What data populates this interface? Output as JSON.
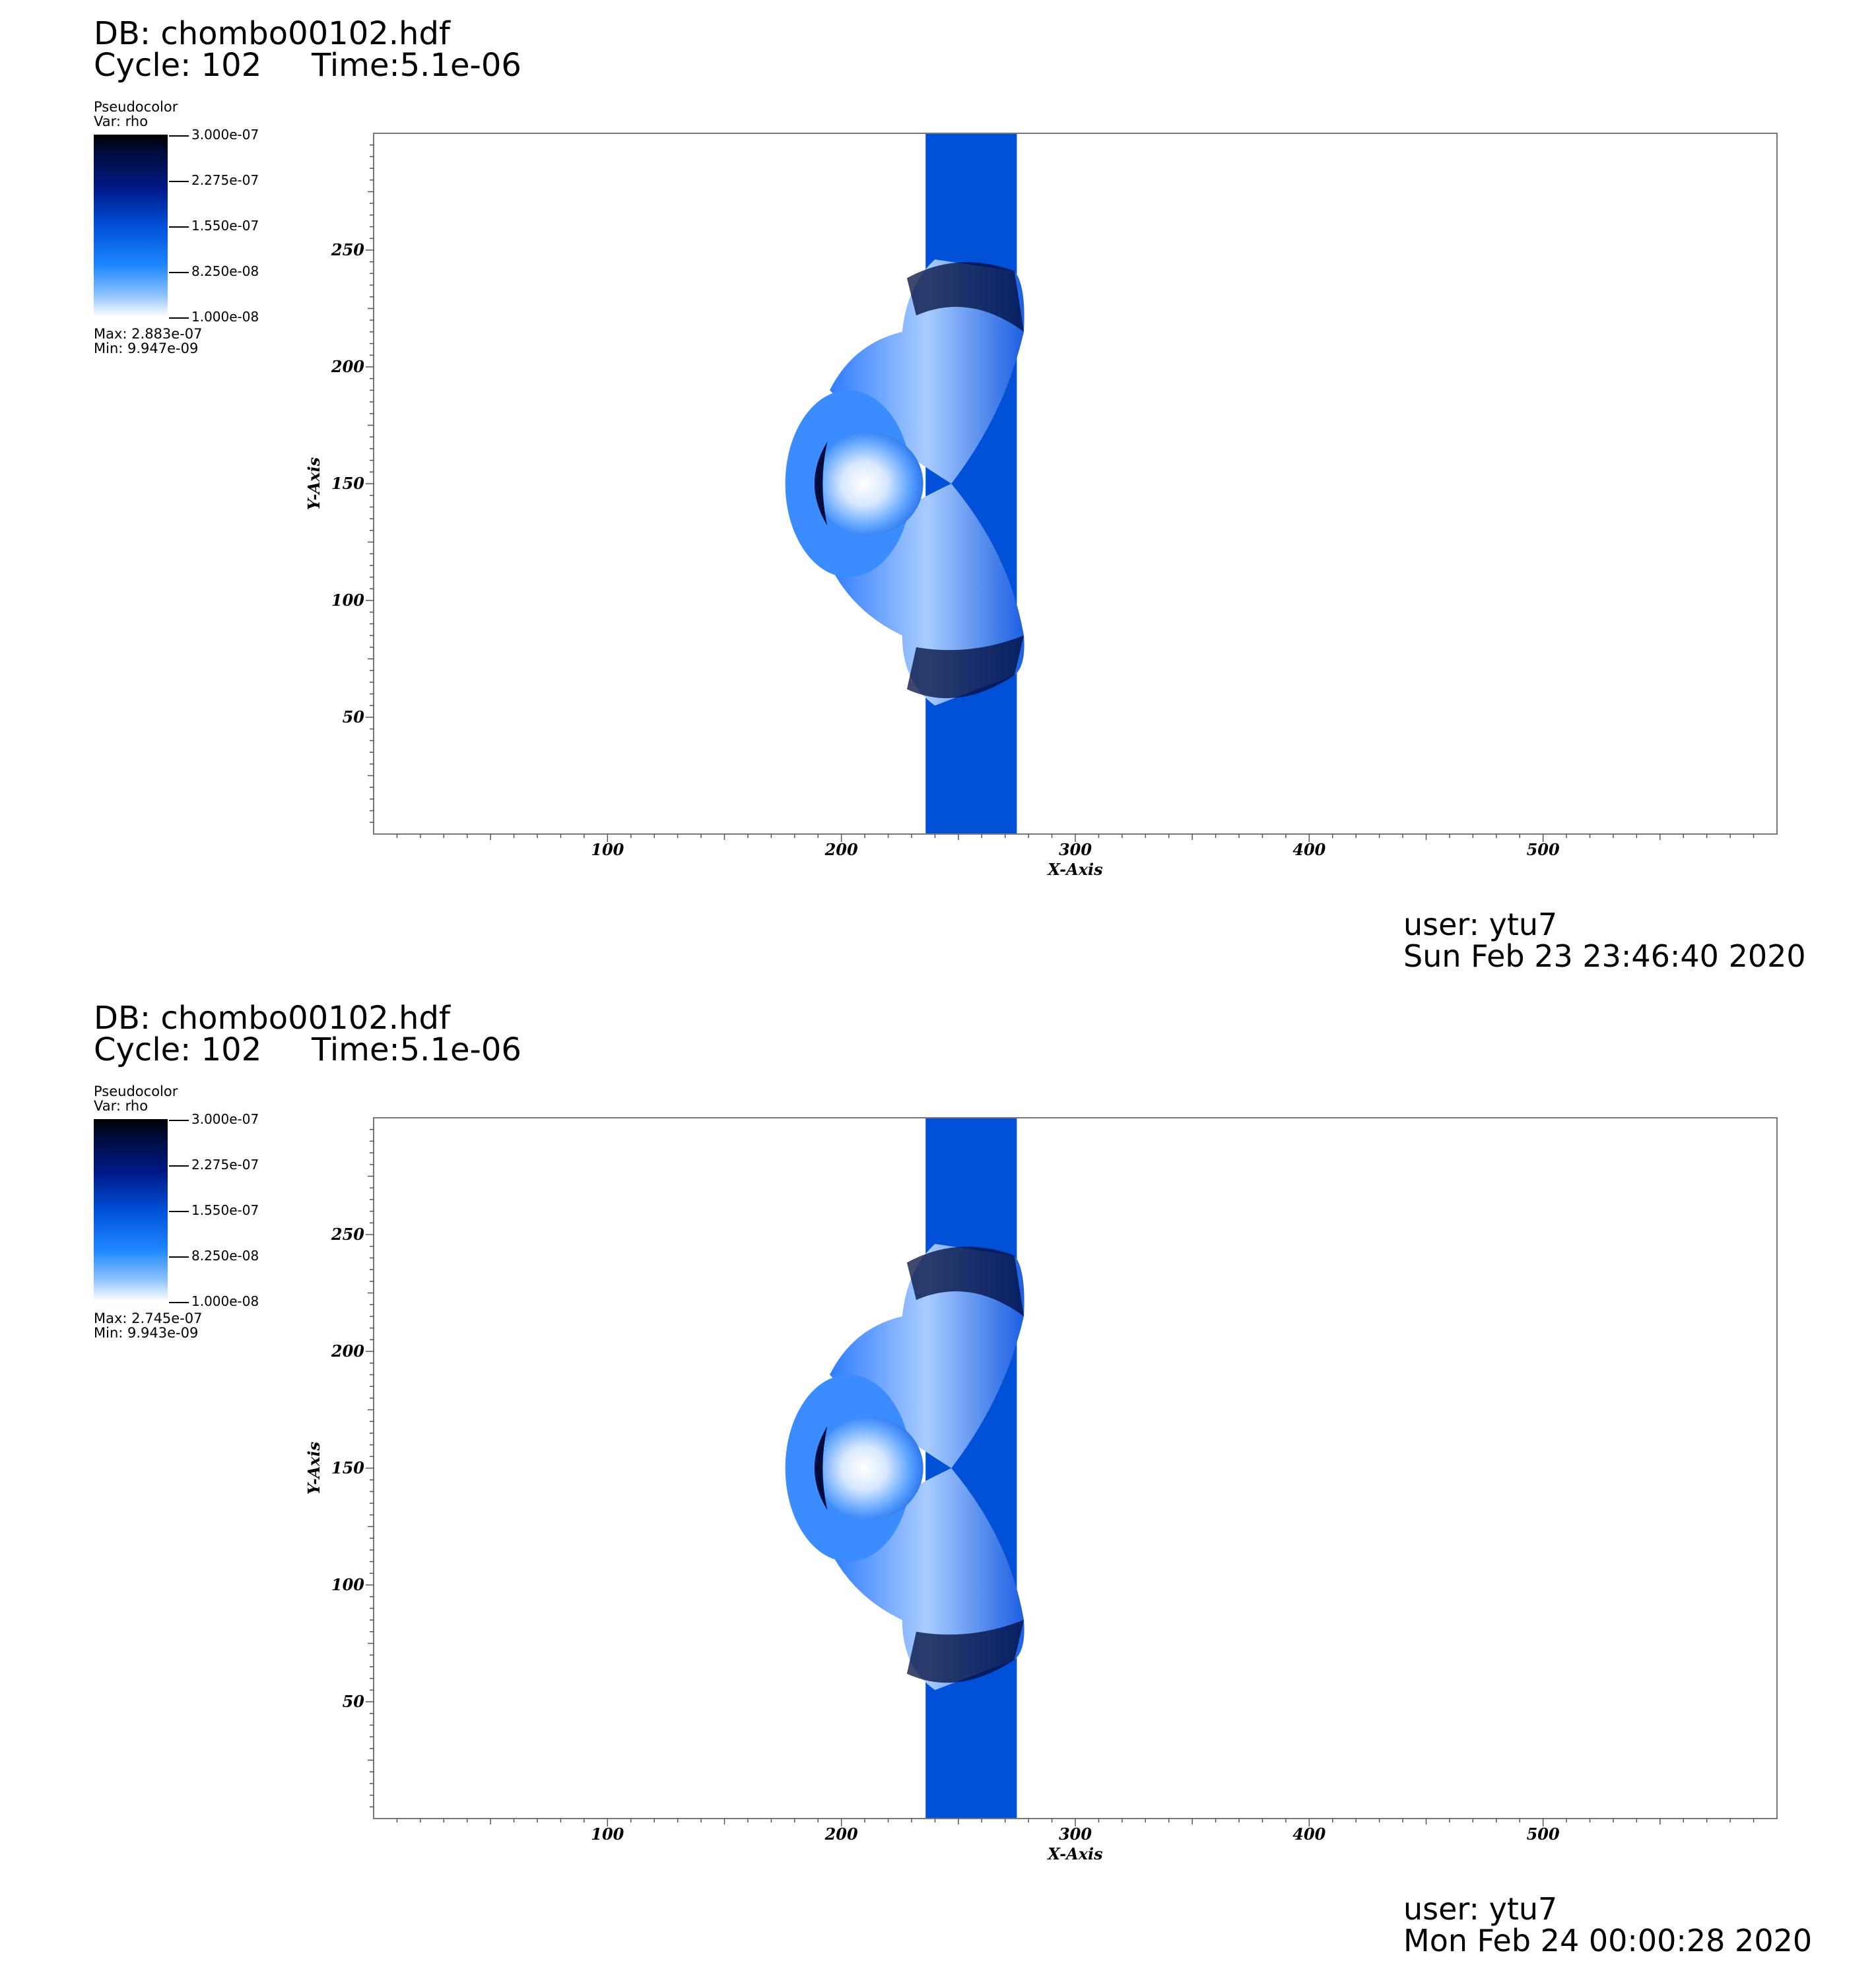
{
  "panels": [
    {
      "db": "DB: chombo00102.hdf",
      "cycle": "Cycle: 102",
      "time": "Time:5.1e-06",
      "legend": {
        "title": "Pseudocolor",
        "var": "Var: rho",
        "ticks": [
          "3.000e-07",
          "2.275e-07",
          "1.550e-07",
          "8.250e-08",
          "1.000e-08"
        ],
        "max": "Max:  2.883e-07",
        "min": "Min:  9.947e-09"
      },
      "user": "user: ytu7",
      "date": "Sun Feb 23 23:46:40 2020"
    },
    {
      "db": "DB: chombo00102.hdf",
      "cycle": "Cycle: 102",
      "time": "Time:5.1e-06",
      "legend": {
        "title": "Pseudocolor",
        "var": "Var: rho",
        "ticks": [
          "3.000e-07",
          "2.275e-07",
          "1.550e-07",
          "8.250e-08",
          "1.000e-08"
        ],
        "max": "Max:  2.745e-07",
        "min": "Min:  9.943e-09"
      },
      "user": "user: ytu7",
      "date": "Mon Feb 24 00:00:28 2020"
    }
  ],
  "chart_data": [
    {
      "type": "heatmap",
      "variable": "rho",
      "xlabel": "X-Axis",
      "ylabel": "Y-Axis",
      "xlim": [
        0,
        600
      ],
      "ylim": [
        0,
        300
      ],
      "xticks": [
        100,
        200,
        300,
        400,
        500
      ],
      "yticks": [
        50,
        100,
        150,
        200,
        250
      ],
      "colorbar_range": [
        1e-08,
        3e-07
      ],
      "colors": {
        "band": "#0050d8",
        "dense": "#000c3c",
        "light": "#3a8cff"
      }
    },
    {
      "type": "heatmap",
      "variable": "rho",
      "xlabel": "X-Axis",
      "ylabel": "Y-Axis",
      "xlim": [
        0,
        600
      ],
      "ylim": [
        0,
        300
      ],
      "xticks": [
        100,
        200,
        300,
        400,
        500
      ],
      "yticks": [
        50,
        100,
        150,
        200,
        250
      ],
      "colorbar_range": [
        1e-08,
        3e-07
      ],
      "colors": {
        "band": "#0050d8",
        "dense": "#000c3c",
        "light": "#3a8cff"
      }
    }
  ]
}
